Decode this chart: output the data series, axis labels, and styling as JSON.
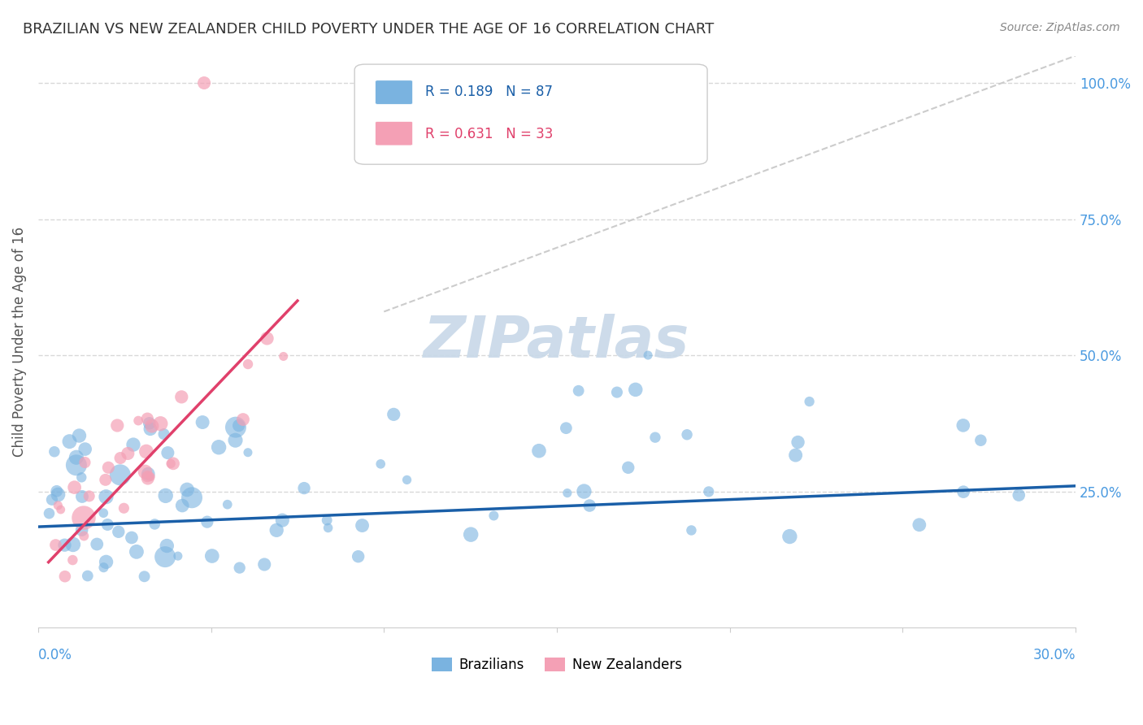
{
  "title": "BRAZILIAN VS NEW ZEALANDER CHILD POVERTY UNDER THE AGE OF 16 CORRELATION CHART",
  "source": "Source: ZipAtlas.com",
  "ylabel": "Child Poverty Under the Age of 16",
  "xlim": [
    0.0,
    0.3
  ],
  "ylim": [
    0.0,
    1.05
  ],
  "brazil_R": 0.189,
  "brazil_N": 87,
  "nz_R": 0.631,
  "nz_N": 33,
  "brazil_color": "#7ab3e0",
  "nz_color": "#f4a0b5",
  "brazil_line_color": "#1a5fa8",
  "nz_line_color": "#e0406b",
  "watermark_color": "#c8d8e8",
  "grid_color": "#d8d8d8",
  "title_color": "#333333",
  "axis_label_color": "#4a9ae0"
}
